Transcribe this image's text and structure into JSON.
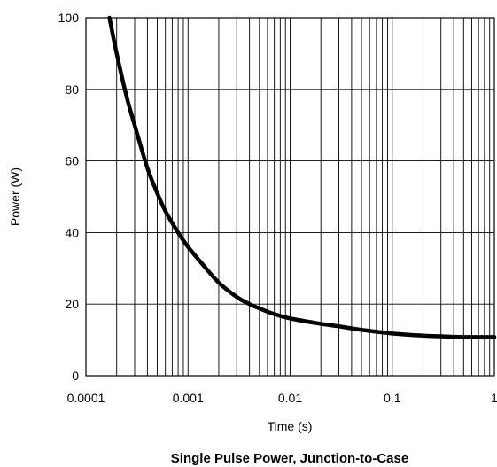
{
  "chart_data": {
    "type": "line",
    "title": "Single Pulse Power, Junction-to-Case",
    "xlabel": "Time (s)",
    "ylabel": "Power  (W)",
    "xscale": "log",
    "xlim": [
      0.0001,
      1
    ],
    "ylim": [
      0,
      100
    ],
    "grid": true,
    "x_tick_labels": [
      "0.0001",
      "0.001",
      "0.01",
      "0.1",
      "1"
    ],
    "y_tick_labels": [
      "0",
      "20",
      "40",
      "60",
      "80",
      "100"
    ],
    "x_ticks": [
      0.0001,
      0.001,
      0.01,
      0.1,
      1
    ],
    "y_ticks": [
      0,
      20,
      40,
      60,
      80,
      100
    ],
    "series": [
      {
        "color": "#000000",
        "x": [
          0.00017,
          0.0002,
          0.00025,
          0.0003,
          0.0004,
          0.0005,
          0.0006,
          0.0008,
          0.001,
          0.0015,
          0.002,
          0.003,
          0.004,
          0.005,
          0.007,
          0.01,
          0.02,
          0.03,
          0.05,
          0.1,
          0.2,
          0.3,
          0.5,
          1
        ],
        "y": [
          100,
          90,
          78,
          70,
          58,
          51,
          46,
          40,
          36,
          30,
          26,
          22,
          20,
          18.8,
          17.2,
          16,
          14.5,
          13.8,
          12.8,
          11.8,
          11.2,
          11,
          10.8,
          10.8
        ]
      }
    ]
  }
}
